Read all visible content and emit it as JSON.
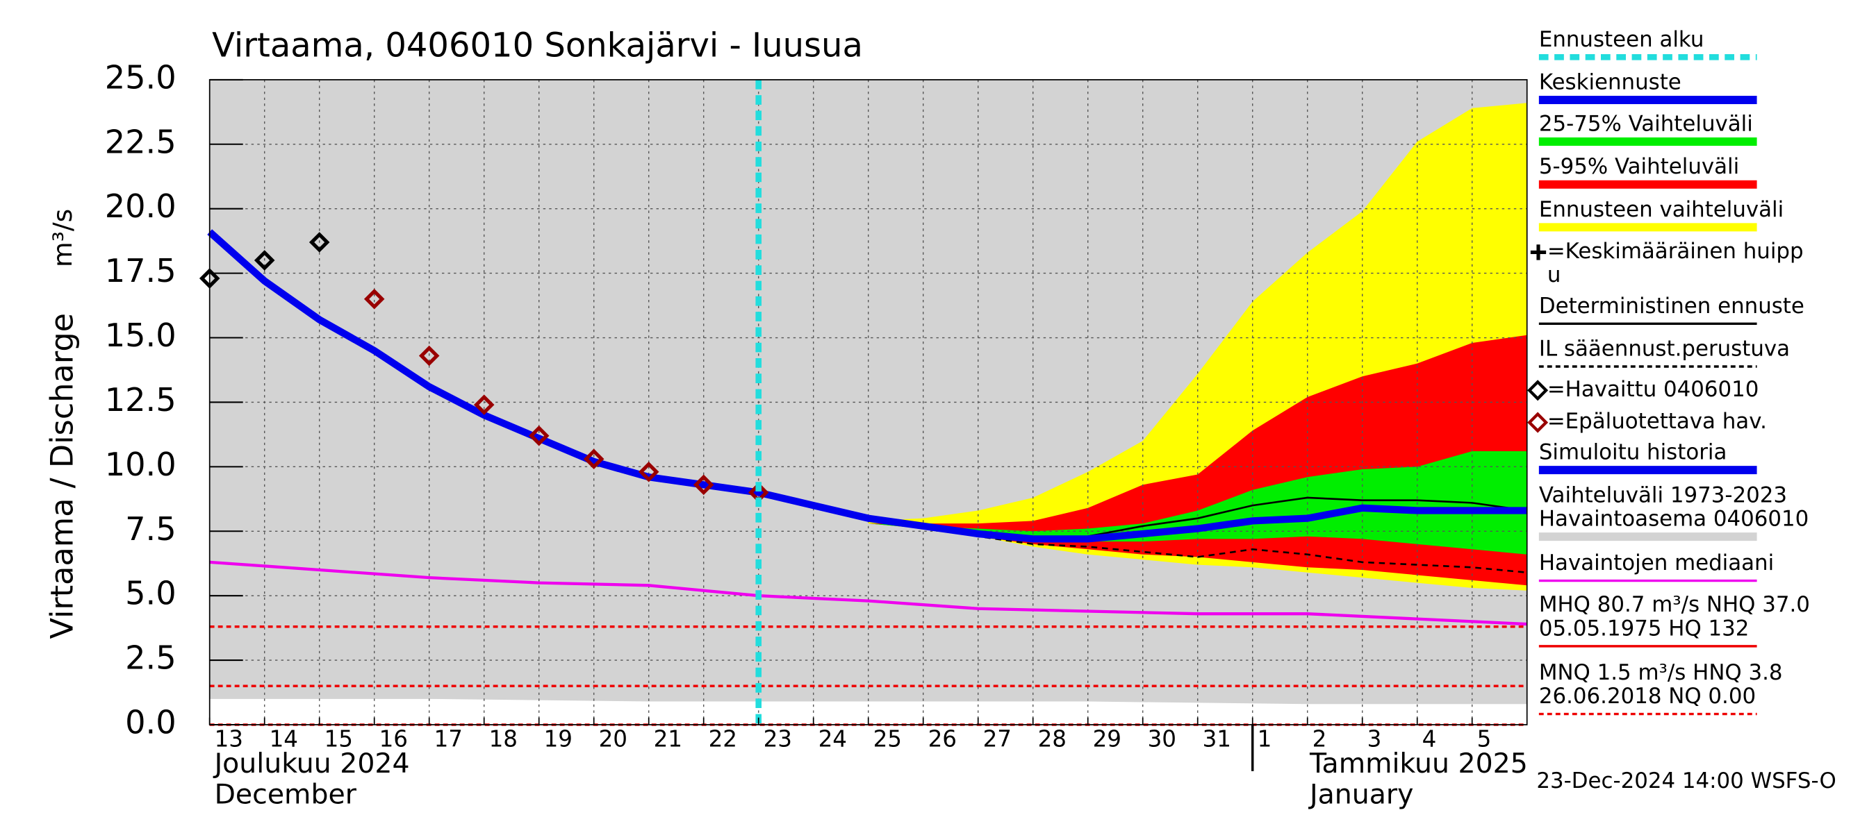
{
  "chart_data": {
    "type": "line",
    "title": "Virtaama, 0406010 Sonkajärvi - Iuusua",
    "y_label": "Virtaama / Discharge",
    "y_unit": "m³/s",
    "month_labels": [
      [
        "Joulukuu  2024",
        "December"
      ],
      [
        "Tammikuu  2025",
        "January"
      ]
    ],
    "footer": "23-Dec-2024 14:00 WSFS-O",
    "xlim": [
      0,
      24
    ],
    "xticks": [
      {
        "value": 0,
        "label": "13"
      },
      {
        "value": 1,
        "label": "14"
      },
      {
        "value": 2,
        "label": "15"
      },
      {
        "value": 3,
        "label": "16"
      },
      {
        "value": 4,
        "label": "17"
      },
      {
        "value": 5,
        "label": "18"
      },
      {
        "value": 6,
        "label": "19"
      },
      {
        "value": 7,
        "label": "20"
      },
      {
        "value": 8,
        "label": "21"
      },
      {
        "value": 9,
        "label": "22"
      },
      {
        "value": 10,
        "label": "23"
      },
      {
        "value": 11,
        "label": "24"
      },
      {
        "value": 12,
        "label": "25"
      },
      {
        "value": 13,
        "label": "26"
      },
      {
        "value": 14,
        "label": "27"
      },
      {
        "value": 15,
        "label": "28"
      },
      {
        "value": 16,
        "label": "29"
      },
      {
        "value": 17,
        "label": "30"
      },
      {
        "value": 18,
        "label": "31"
      },
      {
        "value": 19,
        "label": "1"
      },
      {
        "value": 20,
        "label": "2"
      },
      {
        "value": 21,
        "label": "3"
      },
      {
        "value": 22,
        "label": "4"
      },
      {
        "value": 23,
        "label": "5"
      }
    ],
    "month_break": 19,
    "ylim": [
      0,
      25
    ],
    "yticks": [
      {
        "value": 0,
        "label": "0.0"
      },
      {
        "value": 2.5,
        "label": "2.5"
      },
      {
        "value": 5,
        "label": "5.0"
      },
      {
        "value": 7.5,
        "label": "7.5"
      },
      {
        "value": 10,
        "label": "10.0"
      },
      {
        "value": 12.5,
        "label": "12.5"
      },
      {
        "value": 15,
        "label": "15.0"
      },
      {
        "value": 17.5,
        "label": "17.5"
      },
      {
        "value": 20,
        "label": "20.0"
      },
      {
        "value": 22.5,
        "label": "22.5"
      },
      {
        "value": 25,
        "label": "25.0"
      }
    ],
    "grid": true,
    "forecast_start": {
      "x": 10,
      "color": "#22dddd"
    },
    "hlines": [
      {
        "value": 3.8,
        "color": "#ee0000"
      },
      {
        "value": 1.5,
        "color": "#ee0000"
      },
      {
        "value": 0.0,
        "color": "#ee0000"
      }
    ],
    "series": [
      {
        "kind": "band",
        "color": "#d3d3d3",
        "x": [
          0,
          4,
          8,
          12,
          16,
          20,
          24
        ],
        "lower": [
          1.0,
          1.0,
          0.9,
          0.9,
          0.9,
          0.8,
          0.8
        ],
        "upper": [
          25,
          25,
          25,
          25,
          25,
          25,
          25
        ]
      },
      {
        "kind": "band",
        "color": "#ffff00",
        "x": [
          12,
          13,
          14,
          15,
          16,
          17,
          18,
          19,
          20,
          21,
          22,
          23,
          24
        ],
        "lower": [
          7.8,
          7.6,
          7.3,
          6.9,
          6.6,
          6.4,
          6.2,
          6.1,
          5.9,
          5.7,
          5.5,
          5.3,
          5.2
        ],
        "upper": [
          7.9,
          8.0,
          8.3,
          8.8,
          9.8,
          11.0,
          13.6,
          16.4,
          18.3,
          19.9,
          22.6,
          23.9,
          24.1
        ]
      },
      {
        "kind": "band",
        "color": "#ff0000",
        "x": [
          12,
          13,
          14,
          15,
          16,
          17,
          18,
          19,
          20,
          21,
          22,
          23,
          24
        ],
        "lower": [
          7.8,
          7.6,
          7.3,
          7.0,
          6.8,
          6.6,
          6.5,
          6.3,
          6.1,
          6.0,
          5.8,
          5.6,
          5.4
        ],
        "upper": [
          7.8,
          7.8,
          7.8,
          7.9,
          8.4,
          9.3,
          9.7,
          11.4,
          12.7,
          13.5,
          14.0,
          14.8,
          15.1
        ]
      },
      {
        "kind": "band",
        "color": "#00ee00",
        "x": [
          12,
          13,
          14,
          15,
          16,
          17,
          18,
          19,
          20,
          21,
          22,
          23,
          24
        ],
        "lower": [
          7.8,
          7.6,
          7.4,
          7.2,
          7.1,
          7.1,
          7.2,
          7.2,
          7.3,
          7.2,
          7.0,
          6.8,
          6.6
        ],
        "upper": [
          7.8,
          7.7,
          7.6,
          7.5,
          7.6,
          7.8,
          8.3,
          9.1,
          9.6,
          9.9,
          10.0,
          10.6,
          10.6
        ]
      },
      {
        "kind": "line",
        "color": "#ee00ee",
        "width": 2.5,
        "x": [
          0,
          2,
          4,
          6,
          8,
          10,
          12,
          14,
          16,
          18,
          20,
          22,
          24
        ],
        "values": [
          6.3,
          6.0,
          5.7,
          5.5,
          5.4,
          5.0,
          4.8,
          4.5,
          4.4,
          4.3,
          4.3,
          4.1,
          3.9
        ]
      },
      {
        "kind": "line",
        "color": "#000000",
        "width": 1.5,
        "dash": true,
        "x": [
          12,
          13,
          14,
          15,
          16,
          17,
          18,
          19,
          20,
          21,
          22,
          23,
          24
        ],
        "values": [
          8.0,
          7.7,
          7.3,
          7.0,
          6.9,
          6.7,
          6.5,
          6.8,
          6.6,
          6.3,
          6.2,
          6.1,
          5.9
        ]
      },
      {
        "kind": "line",
        "color": "#000000",
        "width": 1.5,
        "x": [
          12,
          13,
          14,
          15,
          16,
          17,
          18,
          19,
          20,
          21,
          22,
          23,
          24
        ],
        "values": [
          8.0,
          7.7,
          7.4,
          7.2,
          7.3,
          7.7,
          8.0,
          8.5,
          8.8,
          8.7,
          8.7,
          8.6,
          8.3
        ]
      },
      {
        "kind": "line",
        "color": "#0000ee",
        "width": 6,
        "x": [
          0,
          1,
          2,
          3,
          4,
          5,
          6,
          7,
          8,
          9,
          10,
          11,
          12,
          13,
          14,
          15,
          16,
          17,
          18,
          19,
          20,
          21,
          22,
          23,
          24
        ],
        "values": [
          19.1,
          17.2,
          15.7,
          14.5,
          13.1,
          12.0,
          11.1,
          10.2,
          9.6,
          9.3,
          9.0,
          8.5,
          8.0,
          7.7,
          7.4,
          7.2,
          7.2,
          7.4,
          7.6,
          7.9,
          8.0,
          8.4,
          8.3,
          8.3,
          8.3
        ]
      },
      {
        "kind": "points",
        "color": "#000000",
        "x": [
          0,
          1,
          2
        ],
        "values": [
          17.3,
          18.0,
          18.7
        ]
      },
      {
        "kind": "points",
        "color": "#990000",
        "x": [
          3,
          4,
          5,
          6,
          7,
          8,
          9,
          10
        ],
        "values": [
          16.5,
          14.3,
          12.4,
          11.2,
          10.3,
          9.8,
          9.3,
          9.0
        ]
      }
    ],
    "legend": [
      {
        "text": [
          "Ennusteen alku"
        ],
        "swatch": "dash",
        "color": "#22dddd"
      },
      {
        "text": [
          "Keskiennuste"
        ],
        "swatch": "bar",
        "color": "#0000ee"
      },
      {
        "text": [
          "25-75% Vaihteluväli"
        ],
        "swatch": "bar",
        "color": "#00ee00"
      },
      {
        "text": [
          "5-95% Vaihteluväli"
        ],
        "swatch": "bar",
        "color": "#ff0000"
      },
      {
        "text": [
          "Ennusteen vaihteluväli"
        ],
        "swatch": "bar",
        "color": "#ffff00"
      },
      {
        "text": [
          "=Keskimääräinen huipp",
          "u"
        ],
        "swatch": "plus",
        "color": "#000000"
      },
      {
        "text": [
          "Deterministinen ennuste"
        ],
        "swatch": "line",
        "color": "#000000"
      },
      {
        "text": [
          "IL sääennust.perustuva"
        ],
        "swatch": "dashed",
        "color": "#000000"
      },
      {
        "text": [
          "=Havaittu 0406010"
        ],
        "swatch": "diamond",
        "color": "#000000"
      },
      {
        "text": [
          "=Epäluotettava hav."
        ],
        "swatch": "diamond",
        "color": "#990000"
      },
      {
        "text": [
          "Simuloitu historia"
        ],
        "swatch": "bar",
        "color": "#0000ee"
      },
      {
        "text": [
          "Vaihteluväli 1973-2023",
          " Havaintoasema 0406010"
        ],
        "swatch": "bar",
        "color": "#d3d3d3"
      },
      {
        "text": [
          "Havaintojen mediaani"
        ],
        "swatch": "line",
        "color": "#ee00ee"
      },
      {
        "text": [
          "MHQ 80.7 m³/s NHQ 37.0",
          "05.05.1975 HQ  132"
        ],
        "swatch": "line",
        "color": "#ee0000"
      },
      {
        "text": [
          "MNQ  1.5 m³/s HNQ  3.8",
          "26.06.2018 NQ 0.00"
        ],
        "swatch": "dashed",
        "color": "#ee0000"
      }
    ]
  }
}
